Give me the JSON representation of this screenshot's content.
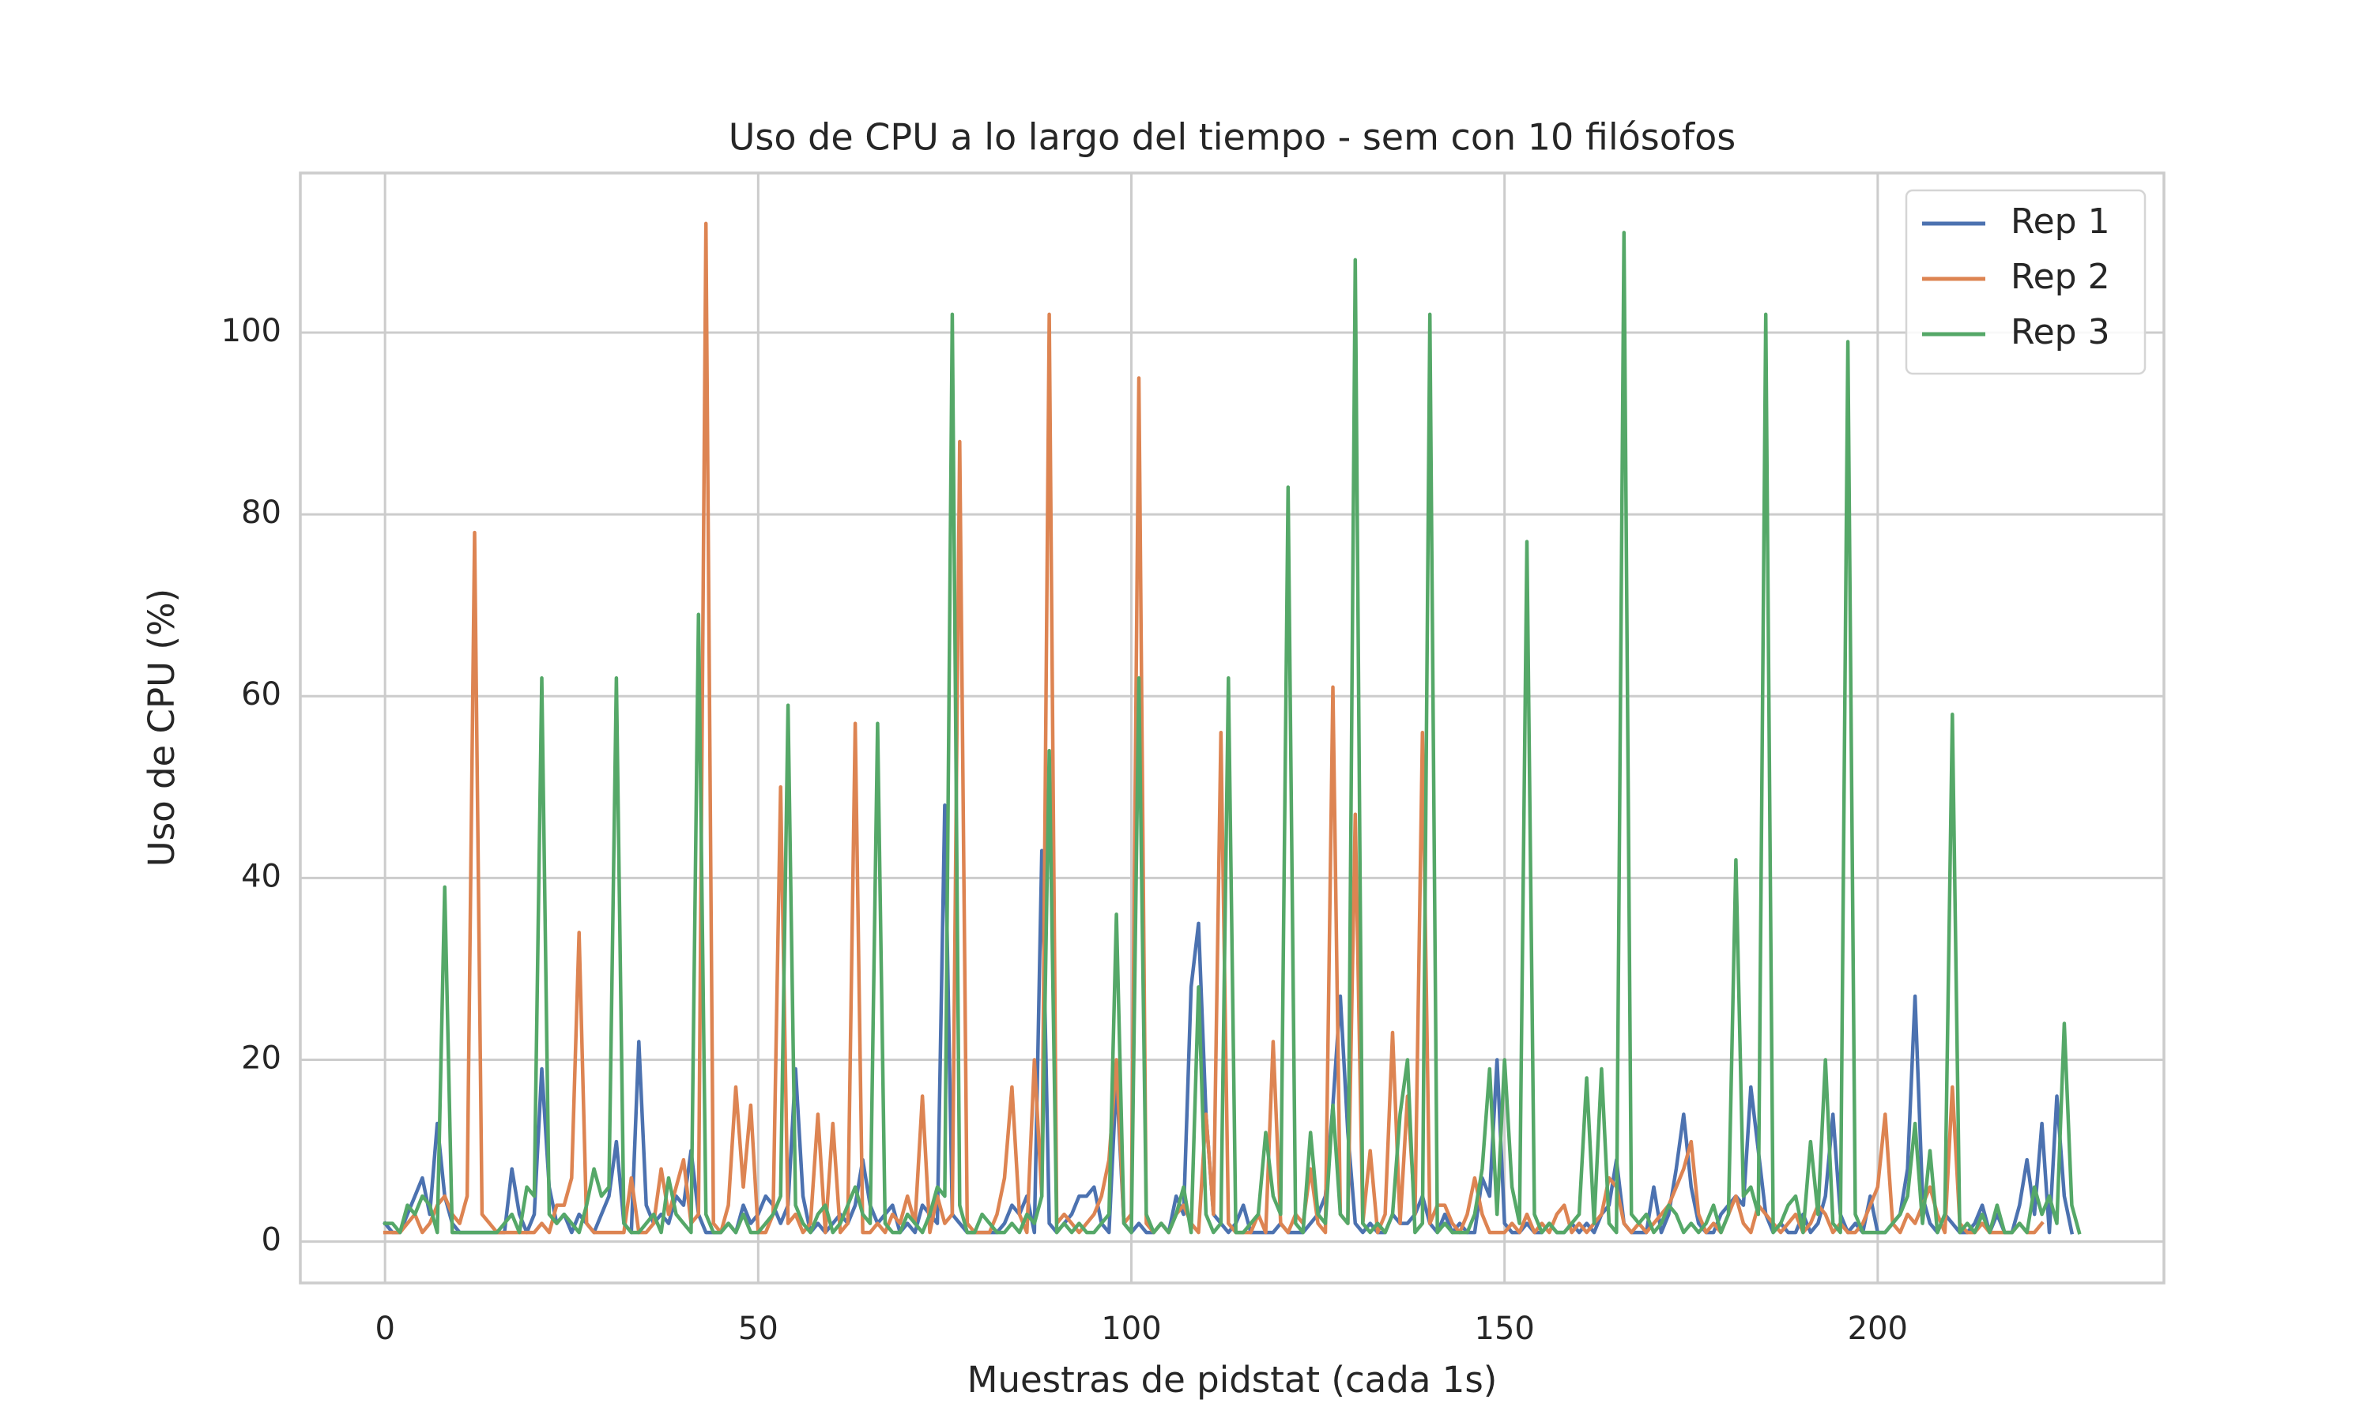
{
  "chart_data": {
    "type": "line",
    "title": "Uso de CPU a lo largo del tiempo - sem con 10 filósofos",
    "xlabel": "Muestras de pidstat (cada 1s)",
    "ylabel": "Uso de CPU (%)",
    "xlim": [
      -11.35,
      238.35
    ],
    "ylim": [
      -4.55,
      117.55
    ],
    "xticks": [
      0,
      50,
      100,
      150,
      200
    ],
    "yticks": [
      0,
      20,
      40,
      60,
      80,
      100
    ],
    "grid": true,
    "legend": "upper right",
    "x": [
      0,
      1,
      2,
      3,
      4,
      5,
      6,
      7,
      8,
      9,
      10,
      11,
      12,
      13,
      14,
      15,
      16,
      17,
      18,
      19,
      20,
      21,
      22,
      23,
      24,
      25,
      26,
      27,
      28,
      29,
      30,
      31,
      32,
      33,
      34,
      35,
      36,
      37,
      38,
      39,
      40,
      41,
      42,
      43,
      44,
      45,
      46,
      47,
      48,
      49,
      50,
      51,
      52,
      53,
      54,
      55,
      56,
      57,
      58,
      59,
      60,
      61,
      62,
      63,
      64,
      65,
      66,
      67,
      68,
      69,
      70,
      71,
      72,
      73,
      74,
      75,
      76,
      77,
      78,
      79,
      80,
      81,
      82,
      83,
      84,
      85,
      86,
      87,
      88,
      89,
      90,
      91,
      92,
      93,
      94,
      95,
      96,
      97,
      98,
      99,
      100,
      101,
      102,
      103,
      104,
      105,
      106,
      107,
      108,
      109,
      110,
      111,
      112,
      113,
      114,
      115,
      116,
      117,
      118,
      119,
      120,
      121,
      122,
      123,
      124,
      125,
      126,
      127,
      128,
      129,
      130,
      131,
      132,
      133,
      134,
      135,
      136,
      137,
      138,
      139,
      140,
      141,
      142,
      143,
      144,
      145,
      146,
      147,
      148,
      149,
      150,
      151,
      152,
      153,
      154,
      155,
      156,
      157,
      158,
      159,
      160,
      161,
      162,
      163,
      164,
      165,
      166,
      167,
      168,
      169,
      170,
      171,
      172,
      173,
      174,
      175,
      176,
      177,
      178,
      179,
      180,
      181,
      182,
      183,
      184,
      185,
      186,
      187,
      188,
      189,
      190,
      191,
      192,
      193,
      194,
      195,
      196,
      197,
      198,
      199,
      200,
      201,
      202,
      203,
      204,
      205,
      206,
      207,
      208,
      209,
      210,
      211,
      212,
      213,
      214,
      215,
      216,
      217,
      218,
      219,
      220,
      221,
      222,
      223,
      224,
      225,
      226,
      227
    ],
    "series": [
      {
        "name": "Rep 1",
        "color": "#4c72b0",
        "values": [
          2,
          1,
          1,
          3,
          5,
          7,
          3,
          13,
          5,
          2,
          1,
          1,
          1,
          1,
          1,
          1,
          1,
          8,
          3,
          1,
          3,
          19,
          6,
          2,
          3,
          1,
          3,
          2,
          1,
          3,
          5,
          11,
          2,
          1,
          22,
          4,
          2,
          3,
          2,
          5,
          4,
          10,
          3,
          1,
          1,
          1,
          2,
          1,
          4,
          2,
          3,
          5,
          4,
          2,
          4,
          19,
          5,
          1,
          2,
          1,
          2,
          3,
          2,
          4,
          9,
          4,
          2,
          3,
          4,
          1,
          2,
          1,
          4,
          3,
          2,
          48,
          3,
          2,
          1,
          1,
          1,
          1,
          1,
          2,
          4,
          3,
          5,
          1,
          43,
          2,
          1,
          2,
          3,
          5,
          5,
          6,
          2,
          1,
          18,
          2,
          1,
          2,
          1,
          1,
          2,
          1,
          5,
          3,
          28,
          35,
          14,
          3,
          2,
          1,
          2,
          4,
          1,
          1,
          1,
          1,
          2,
          1,
          1,
          1,
          2,
          3,
          5,
          15,
          27,
          12,
          2,
          1,
          2,
          1,
          1,
          3,
          2,
          2,
          3,
          5,
          2,
          1,
          3,
          1,
          2,
          1,
          1,
          7,
          5,
          20,
          2,
          1,
          1,
          2,
          1,
          1,
          2,
          1,
          1,
          2,
          1,
          2,
          1,
          3,
          4,
          9,
          2,
          1,
          1,
          1,
          6,
          1,
          3,
          8,
          14,
          6,
          2,
          1,
          1,
          3,
          4,
          5,
          4,
          17,
          10,
          3,
          1,
          2,
          1,
          1,
          3,
          1,
          2,
          5,
          14,
          3,
          1,
          2,
          1,
          5,
          1,
          1,
          2,
          3,
          8,
          27,
          5,
          2,
          1,
          3,
          2,
          1,
          1,
          2,
          4,
          1,
          3,
          1,
          1,
          4,
          9,
          3,
          13,
          1,
          16,
          5,
          1,
          null
        ]
      },
      {
        "name": "Rep 2",
        "color": "#dd8452",
        "values": [
          1,
          1,
          1,
          2,
          3,
          1,
          2,
          4,
          5,
          3,
          2,
          5,
          78,
          3,
          2,
          1,
          1,
          1,
          1,
          1,
          1,
          2,
          1,
          4,
          4,
          7,
          34,
          2,
          1,
          1,
          1,
          1,
          1,
          7,
          1,
          1,
          2,
          8,
          3,
          6,
          9,
          2,
          3,
          112,
          2,
          1,
          4,
          17,
          6,
          15,
          1,
          1,
          3,
          50,
          2,
          3,
          1,
          2,
          14,
          1,
          13,
          1,
          2,
          57,
          1,
          1,
          2,
          1,
          3,
          2,
          5,
          2,
          16,
          1,
          5,
          2,
          3,
          88,
          2,
          1,
          1,
          1,
          3,
          7,
          17,
          3,
          1,
          20,
          5,
          102,
          2,
          3,
          2,
          1,
          2,
          3,
          5,
          9,
          20,
          2,
          3,
          95,
          2,
          1,
          2,
          1,
          3,
          4,
          2,
          1,
          14,
          3,
          56,
          2,
          1,
          1,
          1,
          3,
          1,
          22,
          2,
          1,
          3,
          2,
          8,
          2,
          1,
          61,
          3,
          2,
          47,
          2,
          10,
          1,
          3,
          23,
          2,
          16,
          3,
          56,
          2,
          4,
          4,
          2,
          1,
          3,
          7,
          3,
          1,
          1,
          1,
          2,
          1,
          3,
          1,
          2,
          1,
          3,
          4,
          1,
          2,
          1,
          2,
          3,
          7,
          6,
          2,
          1,
          2,
          1,
          2,
          3,
          4,
          6,
          8,
          11,
          3,
          1,
          2,
          1,
          3,
          5,
          2,
          1,
          4,
          3,
          2,
          1,
          2,
          3,
          1,
          2,
          4,
          3,
          1,
          2,
          1,
          1,
          2,
          4,
          6,
          14,
          2,
          1,
          3,
          2,
          4,
          6,
          3,
          1,
          17,
          2,
          1,
          1,
          2,
          1,
          1,
          1,
          1,
          2,
          1,
          1,
          2,
          null,
          null,
          null,
          null,
          null
        ]
      },
      {
        "name": "Rep 3",
        "color": "#55a868",
        "values": [
          2,
          2,
          1,
          4,
          3,
          5,
          4,
          1,
          39,
          1,
          1,
          1,
          1,
          1,
          1,
          1,
          2,
          3,
          1,
          6,
          5,
          62,
          3,
          2,
          3,
          2,
          1,
          4,
          8,
          5,
          6,
          62,
          2,
          1,
          1,
          2,
          3,
          1,
          7,
          3,
          2,
          1,
          69,
          3,
          1,
          1,
          2,
          1,
          3,
          1,
          1,
          2,
          3,
          5,
          59,
          4,
          2,
          1,
          3,
          4,
          1,
          2,
          4,
          6,
          3,
          2,
          57,
          2,
          1,
          1,
          3,
          2,
          1,
          3,
          6,
          5,
          102,
          4,
          1,
          1,
          3,
          2,
          1,
          1,
          2,
          1,
          3,
          2,
          5,
          54,
          1,
          2,
          1,
          2,
          1,
          1,
          2,
          3,
          36,
          2,
          1,
          62,
          3,
          1,
          2,
          1,
          3,
          6,
          1,
          28,
          3,
          1,
          2,
          62,
          1,
          1,
          2,
          3,
          12,
          5,
          3,
          83,
          2,
          1,
          12,
          3,
          2,
          15,
          3,
          2,
          108,
          2,
          1,
          2,
          1,
          3,
          14,
          20,
          1,
          2,
          102,
          1,
          2,
          1,
          1,
          1,
          3,
          8,
          19,
          3,
          20,
          6,
          2,
          77,
          3,
          1,
          2,
          1,
          1,
          2,
          3,
          18,
          2,
          19,
          2,
          1,
          111,
          3,
          2,
          3,
          1,
          2,
          4,
          3,
          1,
          2,
          1,
          2,
          4,
          1,
          3,
          42,
          5,
          6,
          3,
          102,
          1,
          2,
          4,
          5,
          1,
          11,
          3,
          20,
          2,
          1,
          99,
          3,
          1,
          1,
          1,
          1,
          2,
          3,
          5,
          13,
          2,
          10,
          1,
          3,
          58,
          1,
          2,
          1,
          3,
          1,
          4,
          1,
          1,
          2,
          1,
          6,
          3,
          5,
          2,
          24,
          4,
          1
        ]
      }
    ]
  }
}
